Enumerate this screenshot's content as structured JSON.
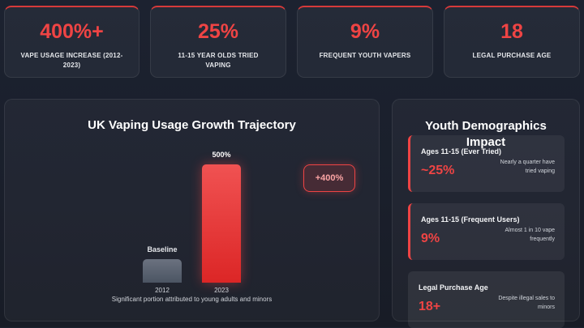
{
  "stats": [
    {
      "value": "400%+",
      "label": "VAPE USAGE INCREASE (2012-2023)"
    },
    {
      "value": "25%",
      "label": "11-15 YEAR OLDS TRIED VAPING"
    },
    {
      "value": "9%",
      "label": "FREQUENT YOUTH VAPERS"
    },
    {
      "value": "18",
      "label": "LEGAL PURCHASE AGE"
    }
  ],
  "growth_chart": {
    "title": "UK Vaping Usage Growth Trajectory",
    "growth_badge": "+400%",
    "footnote": "Significant portion attributed to young adults and minors"
  },
  "chart_data": {
    "type": "bar",
    "title": "UK Vaping Usage Growth Trajectory",
    "categories": [
      "2012",
      "2023"
    ],
    "values": [
      100,
      500
    ],
    "data_labels": [
      "Baseline",
      "500%"
    ],
    "ylim": [
      0,
      500
    ],
    "colors": [
      "#4b5563",
      "#ef4444"
    ]
  },
  "demographics": {
    "title": "Youth Demographics Impact",
    "cards": [
      {
        "title": "Ages 11-15 (Ever Tried)",
        "value": "~25%",
        "desc": "Nearly a quarter have tried vaping"
      },
      {
        "title": "Ages 11-15 (Frequent Users)",
        "value": "9%",
        "desc": "Almost 1 in 10 vape frequently"
      },
      {
        "title": "Legal Purchase Age",
        "value": "18+",
        "desc": "Despite illegal sales to minors"
      }
    ]
  },
  "colors": {
    "accent": "#ef4444",
    "background": "#1c2230",
    "baseline_bar": "#4b5563"
  }
}
